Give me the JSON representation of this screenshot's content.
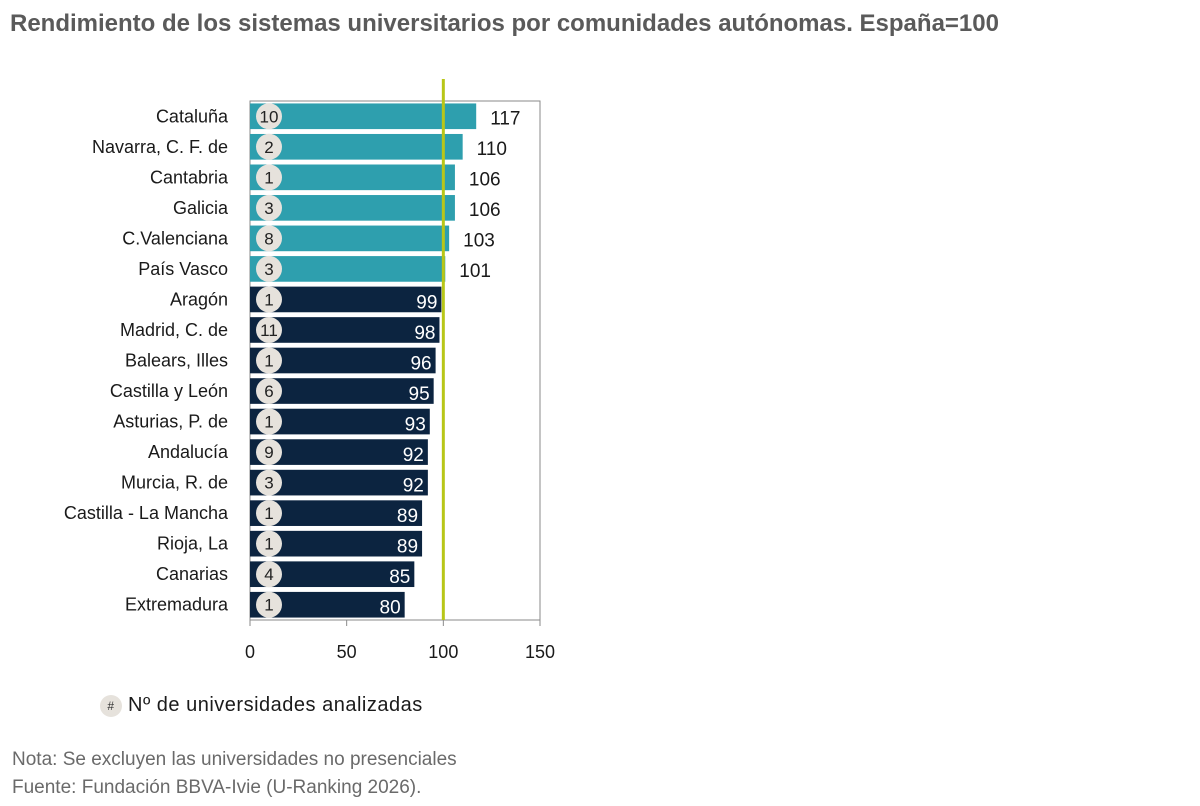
{
  "title": "Rendimiento de los sistemas universitarios por comunidades autónomas. España=100",
  "legend": {
    "symbol": "#",
    "text": "Nº de universidades analizadas"
  },
  "notes": {
    "nota": "Nota: Se excluyen las universidades no presenciales",
    "fuente": "Fuente: Fundación BBVA-Ivie (U-Ranking 2026)."
  },
  "colors": {
    "above": "#2e9fae",
    "below": "#0c2440",
    "reference_line": "#b8c618",
    "badge": "#e6e2dc"
  },
  "chart_data": {
    "type": "bar",
    "orientation": "horizontal",
    "categories": [
      "Cataluña",
      "Navarra, C. F. de",
      "Cantabria",
      "Galicia",
      "C.Valenciana",
      "País Vasco",
      "Aragón",
      "Madrid, C. de",
      "Balears, Illes",
      "Castilla y León",
      "Asturias, P. de",
      "Andalucía",
      "Murcia, R. de",
      "Castilla - La Mancha",
      "Rioja, La",
      "Canarias",
      "Extremadura"
    ],
    "values": [
      117,
      110,
      106,
      106,
      103,
      101,
      99,
      98,
      96,
      95,
      93,
      92,
      92,
      89,
      89,
      85,
      80
    ],
    "universities": [
      10,
      2,
      1,
      3,
      8,
      3,
      1,
      11,
      1,
      6,
      1,
      9,
      3,
      1,
      1,
      4,
      1
    ],
    "value_labels": [
      "117",
      "110",
      "106",
      "106",
      "103",
      "101",
      "99",
      "98",
      "96",
      "95",
      "93",
      "92",
      "92",
      "89",
      "89",
      "85",
      "80"
    ],
    "badge_labels": [
      "10",
      "2",
      "1",
      "3",
      "8",
      "3",
      "1",
      "11",
      "1",
      "6",
      "1",
      "9",
      "3",
      "1",
      "1",
      "4",
      "1"
    ],
    "reference_value": 100,
    "xlim": [
      0,
      150
    ],
    "xticks": [
      0,
      50,
      100,
      150
    ],
    "xtick_labels": [
      "0",
      "50",
      "100",
      "150"
    ],
    "xlabel": "",
    "ylabel": "",
    "grid": false
  }
}
